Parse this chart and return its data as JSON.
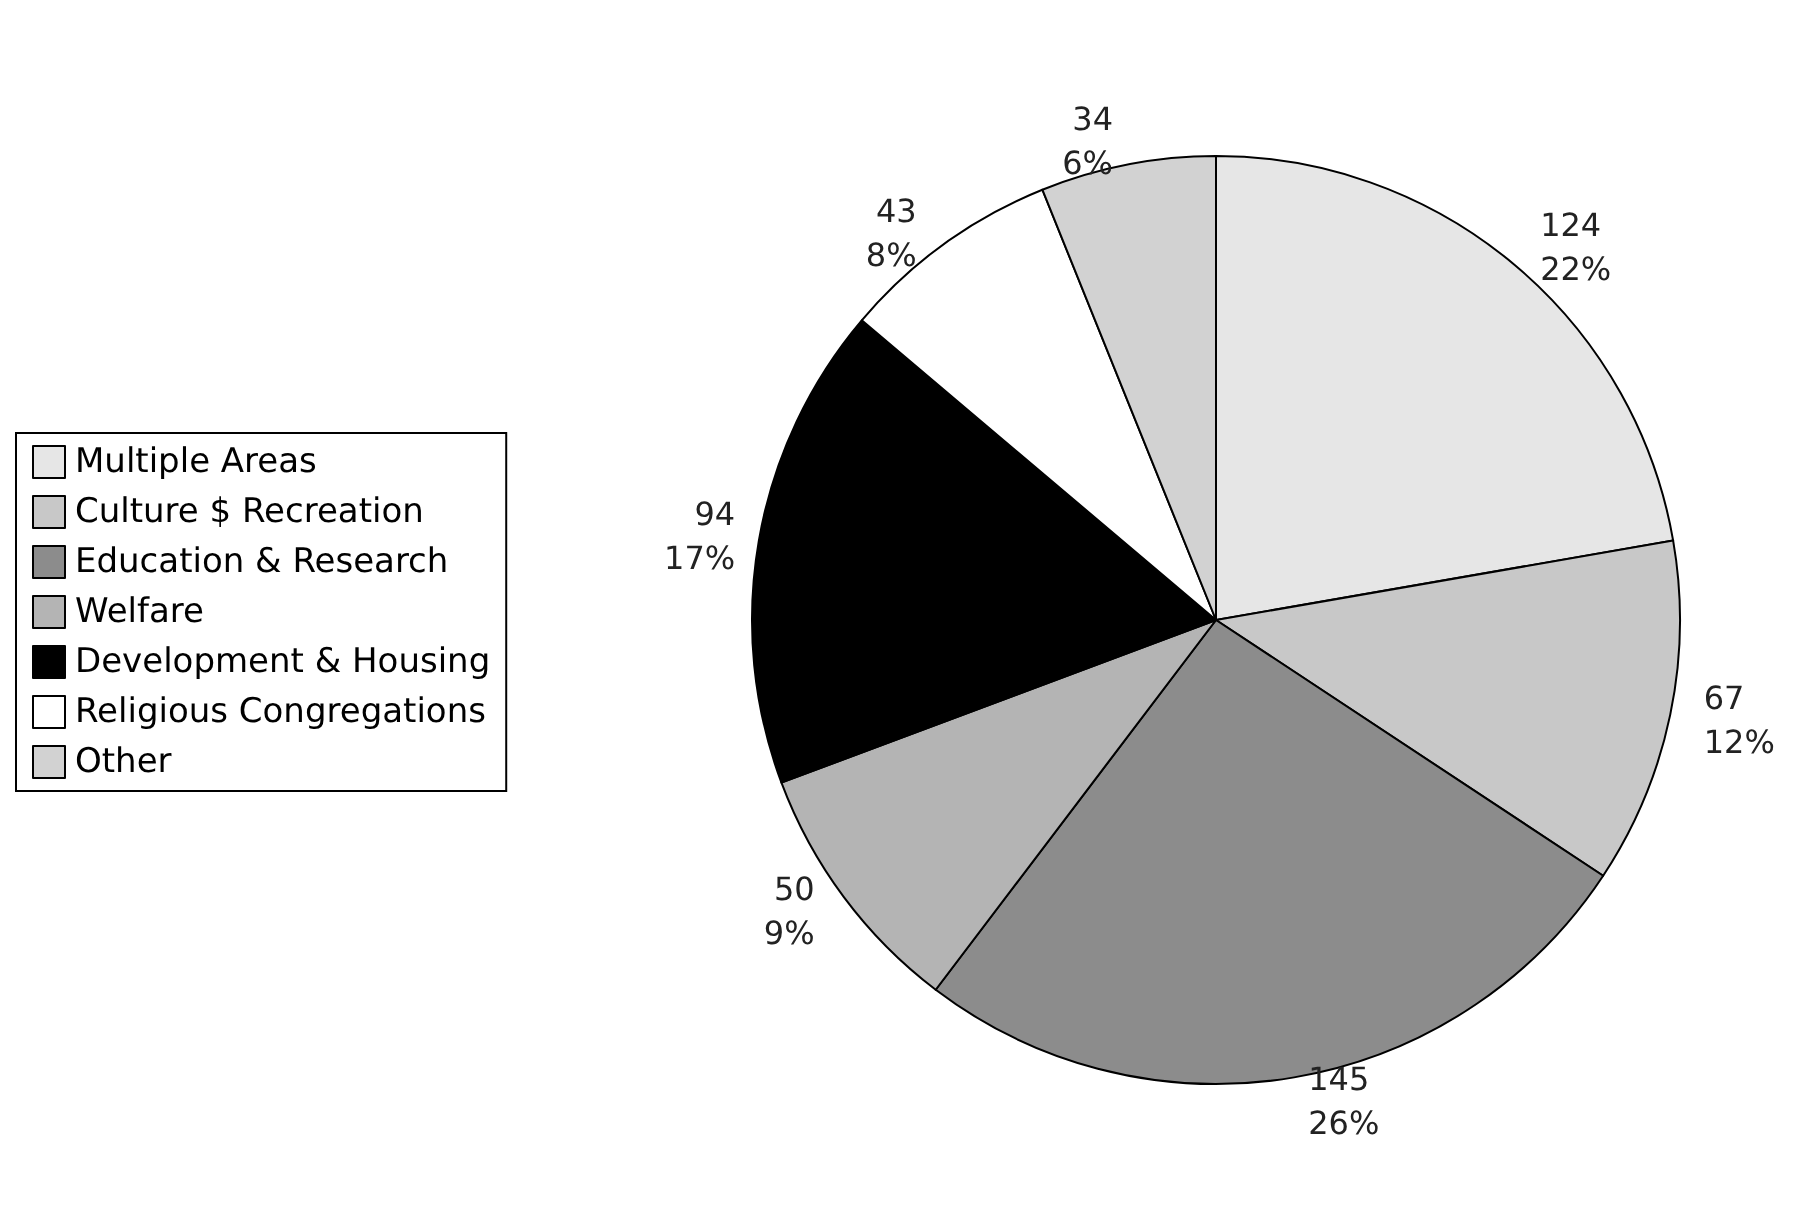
{
  "chart_data": {
    "type": "pie",
    "categories": [
      "Multiple Areas",
      "Culture $ Recreation",
      "Education & Research",
      "Welfare",
      "Development & Housing",
      "Religious Congregations",
      "Other"
    ],
    "values": [
      124,
      67,
      145,
      50,
      94,
      43,
      34
    ],
    "value_labels": [
      "124\n22%",
      "67\n12%",
      "145\n26%",
      "50\n9%",
      "94\n17%",
      "43\n8%",
      "34\n6%"
    ],
    "colors": [
      "#e6e6e6",
      "#c8c8c8",
      "#8c8c8c",
      "#b4b4b4",
      "#000000",
      "#ffffff",
      "#d2d2d2"
    ],
    "legend": "left"
  }
}
